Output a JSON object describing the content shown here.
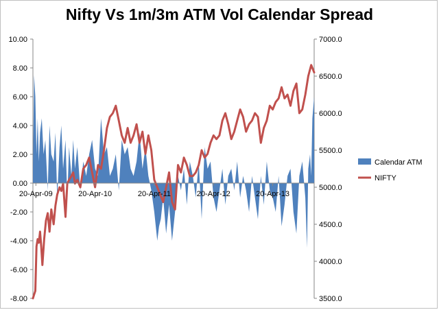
{
  "chart_data": {
    "type": "area-line-combo",
    "title": "Nifty Vs 1m/3m ATM Vol Calendar Spread",
    "x_ticks": [
      "20-Apr-09",
      "20-Apr-10",
      "20-Apr-11",
      "20-Apr-12",
      "20-Apr-13"
    ],
    "y_left": {
      "min": -8,
      "max": 10,
      "step": 2,
      "tick_labels": [
        "-8.00",
        "-6.00",
        "-4.00",
        "-2.00",
        "0.00",
        "2.00",
        "4.00",
        "6.00",
        "8.00",
        "10.00"
      ]
    },
    "y_right": {
      "min": 3500,
      "max": 7000,
      "step": 500,
      "tick_labels": [
        "3500.0",
        "4000.0",
        "4500.0",
        "5000.0",
        "5500.0",
        "6000.0",
        "6500.0",
        "7000.0"
      ]
    },
    "series": [
      {
        "name": "Calendar ATM",
        "type": "area",
        "axis": "left",
        "color": "#4f81bd",
        "x": [
          2009.25,
          2009.27,
          2009.29,
          2009.31,
          2009.33,
          2009.35,
          2009.37,
          2009.4,
          2009.43,
          2009.46,
          2009.5,
          2009.53,
          2009.56,
          2009.6,
          2009.63,
          2009.66,
          2009.7,
          2009.73,
          2009.76,
          2009.8,
          2009.83,
          2009.86,
          2009.9,
          2009.93,
          2009.96,
          2010.0,
          2010.05,
          2010.1,
          2010.15,
          2010.2,
          2010.25,
          2010.3,
          2010.35,
          2010.4,
          2010.45,
          2010.5,
          2010.55,
          2010.6,
          2010.65,
          2010.7,
          2010.75,
          2010.8,
          2010.85,
          2010.9,
          2010.95,
          2011.0,
          2011.05,
          2011.1,
          2011.15,
          2011.2,
          2011.25,
          2011.3,
          2011.35,
          2011.38,
          2011.41,
          2011.45,
          2011.5,
          2011.55,
          2011.6,
          2011.65,
          2011.7,
          2011.75,
          2011.8,
          2011.85,
          2011.9,
          2011.95,
          2012.0,
          2012.05,
          2012.1,
          2012.15,
          2012.2,
          2012.25,
          2012.3,
          2012.35,
          2012.4,
          2012.45,
          2012.5,
          2012.55,
          2012.6,
          2012.65,
          2012.7,
          2012.75,
          2012.8,
          2012.85,
          2012.9,
          2012.95,
          2013.0,
          2013.05,
          2013.1,
          2013.15,
          2013.2,
          2013.25,
          2013.3,
          2013.35,
          2013.4,
          2013.45,
          2013.5,
          2013.55,
          2013.6,
          2013.65,
          2013.7,
          2013.75,
          2013.8,
          2013.85,
          2013.88,
          2013.9,
          2013.93,
          2013.95,
          2013.97,
          2014.0
        ],
        "values": [
          1.0,
          7.5,
          6.0,
          2.0,
          4.5,
          1.5,
          3.5,
          4.5,
          2.0,
          3.0,
          -0.5,
          4.0,
          2.0,
          1.5,
          3.5,
          -1.0,
          2.5,
          4.0,
          1.0,
          3.0,
          -1.0,
          2.5,
          0.5,
          3.0,
          1.0,
          2.5,
          -0.5,
          1.5,
          0.5,
          2.0,
          3.0,
          1.0,
          0.5,
          4.5,
          2.0,
          2.5,
          0.5,
          1.0,
          2.0,
          -0.5,
          3.0,
          2.0,
          2.5,
          1.0,
          0.5,
          1.5,
          3.5,
          1.0,
          2.5,
          0.5,
          -0.5,
          -2.0,
          -4.0,
          -3.0,
          -2.5,
          -1.0,
          -3.5,
          -1.5,
          -4.0,
          -2.0,
          0.5,
          -0.5,
          1.0,
          -1.5,
          1.5,
          0.5,
          -1.0,
          1.5,
          -2.5,
          2.5,
          1.0,
          1.5,
          -1.0,
          -2.0,
          -0.5,
          1.0,
          -1.5,
          0.5,
          1.0,
          -0.5,
          1.5,
          -1.0,
          0.5,
          -0.5,
          -2.0,
          0.5,
          -1.0,
          -2.5,
          0.5,
          -1.5,
          1.5,
          -0.5,
          -1.0,
          -2.0,
          0.5,
          -3.0,
          -1.5,
          0.5,
          1.0,
          -2.0,
          -3.5,
          0.5,
          1.5,
          -1.0,
          -4.5,
          1.0,
          2.0,
          0.5,
          4.5,
          6.0
        ]
      },
      {
        "name": "NIFTY",
        "type": "line",
        "axis": "right",
        "color": "#c0504d",
        "x": [
          2009.25,
          2009.27,
          2009.29,
          2009.31,
          2009.33,
          2009.35,
          2009.37,
          2009.39,
          2009.41,
          2009.44,
          2009.47,
          2009.5,
          2009.53,
          2009.56,
          2009.6,
          2009.63,
          2009.66,
          2009.7,
          2009.73,
          2009.76,
          2009.8,
          2009.83,
          2009.86,
          2009.9,
          2009.93,
          2009.96,
          2010.0,
          2010.05,
          2010.1,
          2010.15,
          2010.2,
          2010.25,
          2010.3,
          2010.35,
          2010.4,
          2010.45,
          2010.5,
          2010.55,
          2010.6,
          2010.65,
          2010.7,
          2010.75,
          2010.8,
          2010.85,
          2010.9,
          2010.95,
          2011.0,
          2011.05,
          2011.1,
          2011.15,
          2011.2,
          2011.25,
          2011.3,
          2011.35,
          2011.4,
          2011.45,
          2011.5,
          2011.55,
          2011.6,
          2011.65,
          2011.7,
          2011.75,
          2011.8,
          2011.85,
          2011.9,
          2011.95,
          2012.0,
          2012.05,
          2012.1,
          2012.15,
          2012.2,
          2012.25,
          2012.3,
          2012.35,
          2012.4,
          2012.45,
          2012.5,
          2012.55,
          2012.6,
          2012.65,
          2012.7,
          2012.75,
          2012.8,
          2012.85,
          2012.9,
          2012.95,
          2013.0,
          2013.05,
          2013.1,
          2013.15,
          2013.2,
          2013.25,
          2013.3,
          2013.35,
          2013.4,
          2013.45,
          2013.5,
          2013.55,
          2013.6,
          2013.65,
          2013.7,
          2013.75,
          2013.8,
          2013.85,
          2013.9,
          2013.95,
          2014.0
        ],
        "values": [
          3500,
          3550,
          3600,
          4200,
          4300,
          4250,
          4400,
          4200,
          3950,
          4300,
          4550,
          4650,
          4400,
          4700,
          4500,
          4750,
          4900,
          5000,
          4950,
          5050,
          4600,
          5050,
          5100,
          5150,
          5200,
          5050,
          5100,
          5000,
          5250,
          5300,
          5400,
          5200,
          5000,
          5300,
          5250,
          5500,
          5800,
          5950,
          6000,
          6100,
          5900,
          5700,
          5600,
          5800,
          5600,
          5700,
          5850,
          5600,
          5750,
          5450,
          5700,
          5500,
          5100,
          5000,
          4900,
          4800,
          5000,
          5200,
          4800,
          4700,
          5300,
          5200,
          5400,
          5300,
          5150,
          5150,
          5200,
          5300,
          5500,
          5400,
          5450,
          5600,
          5700,
          5650,
          5700,
          5900,
          6000,
          5850,
          5650,
          5750,
          5900,
          6050,
          5950,
          5750,
          5850,
          5900,
          6000,
          5950,
          5600,
          5800,
          5900,
          6100,
          6050,
          6150,
          6200,
          6350,
          6200,
          6250,
          6100,
          6300,
          6400,
          6000,
          6050,
          6250,
          6500,
          6650,
          6550
        ]
      }
    ],
    "legend": {
      "position": "right",
      "entries": [
        {
          "label": "Calendar ATM",
          "color": "#4f81bd",
          "kind": "area"
        },
        {
          "label": "NIFTY",
          "color": "#c0504d",
          "kind": "line"
        }
      ]
    }
  }
}
